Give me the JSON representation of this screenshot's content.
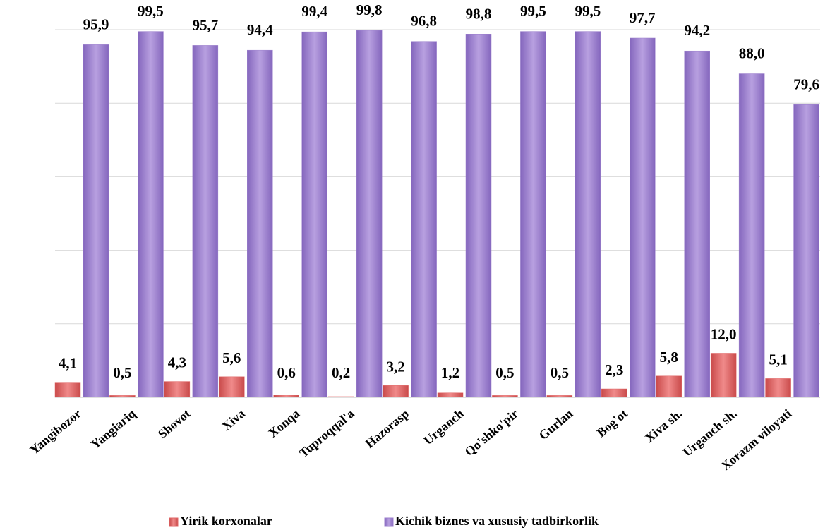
{
  "chart_data": {
    "type": "bar",
    "categories": [
      "Yangibozor",
      "Yangiariq",
      "Shovot",
      "Xiva",
      "Xonqa",
      "Tuproqqal'a",
      "Hazorasp",
      "Urganch",
      "Qo'shko'pir",
      "Gurlan",
      "Bog'ot",
      "Xiva sh.",
      "Urganch sh.",
      "Xorazm viloyati"
    ],
    "series": [
      {
        "name": "Yirik korxonalar",
        "color": "#e06666",
        "values": [
          4.1,
          0.5,
          4.3,
          5.6,
          0.6,
          0.2,
          3.2,
          1.2,
          0.5,
          0.5,
          2.3,
          5.8,
          12.0,
          5.1
        ],
        "value_labels": [
          "4,1",
          "0,5",
          "4,3",
          "5,6",
          "0,6",
          "0,2",
          "3,2",
          "1,2",
          "0,5",
          "0,5",
          "2,3",
          "5,8",
          "12,0",
          "5,1"
        ]
      },
      {
        "name": "Kichik biznes va xususiy tadbirkorlik",
        "color": "#9b7fcc",
        "values": [
          95.9,
          99.5,
          95.7,
          94.4,
          99.4,
          99.8,
          96.8,
          98.8,
          99.5,
          99.5,
          97.7,
          94.2,
          88.0,
          79.6
        ],
        "value_labels": [
          "95,9",
          "99,5",
          "95,7",
          "94,4",
          "99,4",
          "99,8",
          "96,8",
          "98,8",
          "99,5",
          "99,5",
          "97,7",
          "94,2",
          "88,0",
          "79,6"
        ]
      }
    ],
    "ylim": [
      0,
      100
    ],
    "yticks": [
      0,
      20,
      40,
      60,
      80,
      100
    ],
    "grid": true,
    "legend": "bottom"
  }
}
